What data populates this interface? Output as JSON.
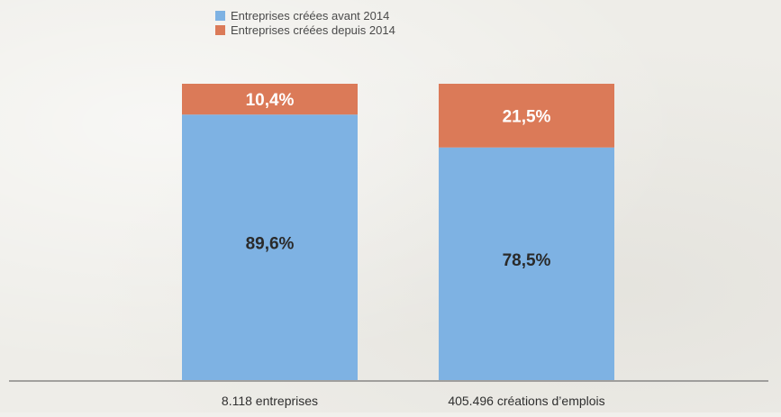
{
  "chart_data": {
    "type": "bar",
    "stacked": true,
    "normalized_percent": true,
    "categories": [
      "8.118 entreprises",
      "405.496 créations d’emplois"
    ],
    "series": [
      {
        "name": "Entreprises créées avant 2014",
        "values": [
          89.6,
          78.5
        ],
        "labels": [
          "89,6%",
          "78,5%"
        ],
        "color": "#7eb2e3",
        "label_color": "#2a2a2a"
      },
      {
        "name": "Entreprises créées depuis 2014",
        "values": [
          10.4,
          21.5
        ],
        "labels": [
          "10,4%",
          "21,5%"
        ],
        "color": "#db7a58",
        "label_color": "#ffffff"
      }
    ],
    "ylim": [
      0,
      100
    ],
    "grid": false,
    "legend": "top-left",
    "baseline_color": "#555555"
  }
}
